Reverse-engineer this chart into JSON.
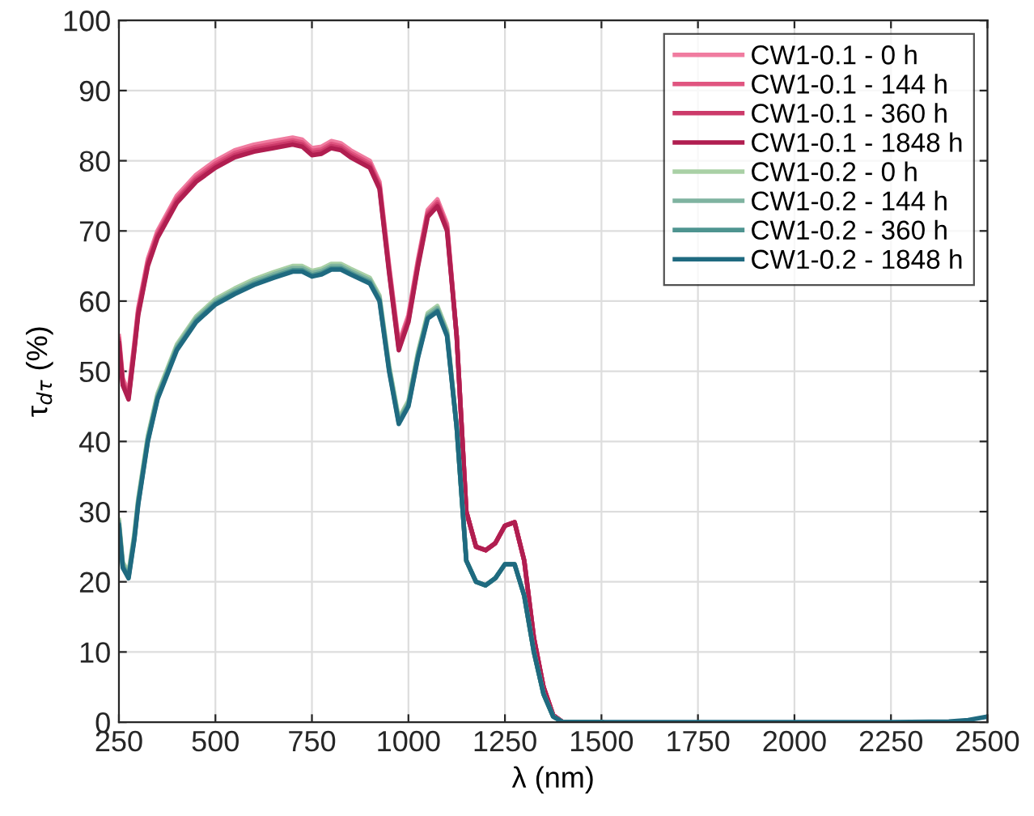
{
  "chart_data": {
    "type": "line",
    "xlabel": "λ (nm)",
    "ylabel": "τ$_{dτ}$ (%)",
    "x": [
      250,
      260,
      275,
      290,
      300,
      325,
      350,
      400,
      450,
      500,
      550,
      600,
      650,
      700,
      725,
      750,
      775,
      800,
      825,
      850,
      900,
      925,
      950,
      975,
      1000,
      1025,
      1050,
      1075,
      1100,
      1125,
      1150,
      1175,
      1200,
      1225,
      1250,
      1275,
      1300,
      1325,
      1350,
      1375,
      1400,
      1500,
      1750,
      2000,
      2250,
      2400,
      2450,
      2500
    ],
    "series": [
      {
        "name": "CW1-0.1 - 0 h",
        "color": "#f07ca0",
        "values": [
          55,
          49,
          47,
          54,
          59,
          66,
          70,
          75,
          78,
          80,
          81.5,
          82.3,
          82.8,
          83.3,
          83,
          81.8,
          82,
          82.8,
          82.5,
          81.5,
          80,
          77,
          65,
          54,
          58,
          66,
          73,
          74.5,
          71,
          55,
          30,
          25,
          24.5,
          25.5,
          28,
          28.5,
          23,
          12,
          5,
          1,
          0,
          0,
          null,
          null,
          null,
          null,
          null,
          null
        ]
      },
      {
        "name": "CW1-0.1 - 144 h",
        "color": "#e05580",
        "values": [
          54.6,
          48.6,
          46.6,
          53.6,
          58.6,
          65.6,
          69.6,
          74.6,
          77.6,
          79.6,
          81.1,
          81.9,
          82.4,
          82.9,
          82.6,
          81.4,
          81.6,
          82.4,
          82.1,
          81.1,
          79.6,
          76.6,
          64.6,
          53.6,
          57.6,
          65.6,
          72.6,
          74.1,
          70.6,
          55,
          30,
          25,
          24.5,
          25.5,
          28,
          28.5,
          23,
          12,
          5,
          1,
          0,
          0,
          null,
          null,
          null,
          null,
          null,
          null
        ]
      },
      {
        "name": "CW1-0.1 - 360 h",
        "color": "#cc3a6a",
        "values": [
          54.3,
          48.3,
          46.3,
          53.3,
          58.3,
          65.3,
          69.3,
          74.3,
          77.3,
          79.3,
          80.8,
          81.6,
          82.1,
          82.6,
          82.3,
          81.1,
          81.3,
          82.1,
          81.8,
          80.8,
          79.3,
          76.3,
          64.3,
          53.3,
          57.3,
          65.3,
          72.3,
          73.8,
          70.3,
          55,
          30,
          25,
          24.5,
          25.5,
          28,
          28.5,
          23,
          12,
          5,
          1,
          0,
          0,
          null,
          null,
          null,
          null,
          null,
          null
        ]
      },
      {
        "name": "CW1-0.1 - 1848 h",
        "color": "#b01e50",
        "values": [
          54,
          48,
          46,
          53,
          58,
          65,
          69,
          74,
          77,
          79,
          80.5,
          81.3,
          81.8,
          82.3,
          82,
          80.8,
          81,
          81.8,
          81.5,
          80.5,
          79,
          76,
          64,
          53,
          57,
          65,
          72,
          73.5,
          70,
          55,
          30,
          25,
          24.5,
          25.5,
          28,
          28.5,
          23,
          12,
          5,
          1,
          0,
          0,
          null,
          null,
          null,
          null,
          null,
          null
        ]
      },
      {
        "name": "CW1-0.2 - 0 h",
        "color": "#a9d0a5",
        "values": [
          28.8,
          22.8,
          21.3,
          26.8,
          31.8,
          40.8,
          46.8,
          53.8,
          57.8,
          60.3,
          61.8,
          63.1,
          64.1,
          65,
          65,
          64.3,
          64.6,
          65.3,
          65.3,
          64.6,
          63.3,
          60.8,
          50.8,
          43.3,
          45.8,
          52.8,
          58.3,
          59.3,
          55.8,
          42,
          23,
          20,
          19.5,
          20.5,
          22.5,
          22.5,
          18,
          10,
          4,
          0.8,
          0,
          0,
          null,
          null,
          null,
          null,
          null,
          null
        ]
      },
      {
        "name": "CW1-0.2 - 144 h",
        "color": "#7fb3a0",
        "values": [
          28.5,
          22.5,
          21,
          26.5,
          31.5,
          40.5,
          46.5,
          53.5,
          57.5,
          60,
          61.5,
          62.8,
          63.8,
          64.7,
          64.7,
          64,
          64.3,
          65,
          65,
          64.3,
          63,
          60.5,
          50.5,
          43,
          45.5,
          52.5,
          58,
          59,
          55.5,
          42,
          23,
          20,
          19.5,
          20.5,
          22.5,
          22.5,
          18,
          10,
          4,
          0.8,
          0,
          0,
          null,
          null,
          null,
          null,
          null,
          null
        ]
      },
      {
        "name": "CW1-0.2 - 360 h",
        "color": "#4e9490",
        "values": [
          28.2,
          22.2,
          20.7,
          26.2,
          31.2,
          40.2,
          46.2,
          53.2,
          57.2,
          59.7,
          61.2,
          62.5,
          63.5,
          64.4,
          64.4,
          63.7,
          64,
          64.7,
          64.7,
          64,
          62.7,
          60.2,
          50.2,
          42.7,
          45.2,
          52.2,
          57.7,
          58.7,
          55.2,
          42,
          23,
          20,
          19.5,
          20.5,
          22.5,
          22.5,
          18,
          10,
          4,
          0.8,
          0,
          0,
          null,
          null,
          null,
          null,
          null,
          null
        ]
      },
      {
        "name": "CW1-0.2 - 1848 h",
        "color": "#1f6a80",
        "values": [
          28,
          22,
          20.5,
          26,
          31,
          40,
          46,
          53,
          57,
          59.5,
          61,
          62.3,
          63.3,
          64.2,
          64.2,
          63.5,
          63.8,
          64.5,
          64.5,
          63.8,
          62.5,
          60,
          50,
          42.5,
          45,
          52,
          57.5,
          58.5,
          55,
          42,
          23,
          20,
          19.5,
          20.5,
          22.5,
          22.5,
          18,
          10,
          4,
          0.8,
          0,
          0,
          0,
          0,
          0,
          0.1,
          0.3,
          0.8
        ]
      }
    ],
    "xlim": [
      250,
      2500
    ],
    "xticks": [
      250,
      500,
      750,
      1000,
      1250,
      1500,
      1750,
      2000,
      2250,
      2500
    ],
    "ylim": [
      0,
      100
    ],
    "yticks": [
      0,
      10,
      20,
      30,
      40,
      50,
      60,
      70,
      80,
      90,
      100
    ],
    "grid": true,
    "legend": "top right",
    "line_style": "solid"
  }
}
